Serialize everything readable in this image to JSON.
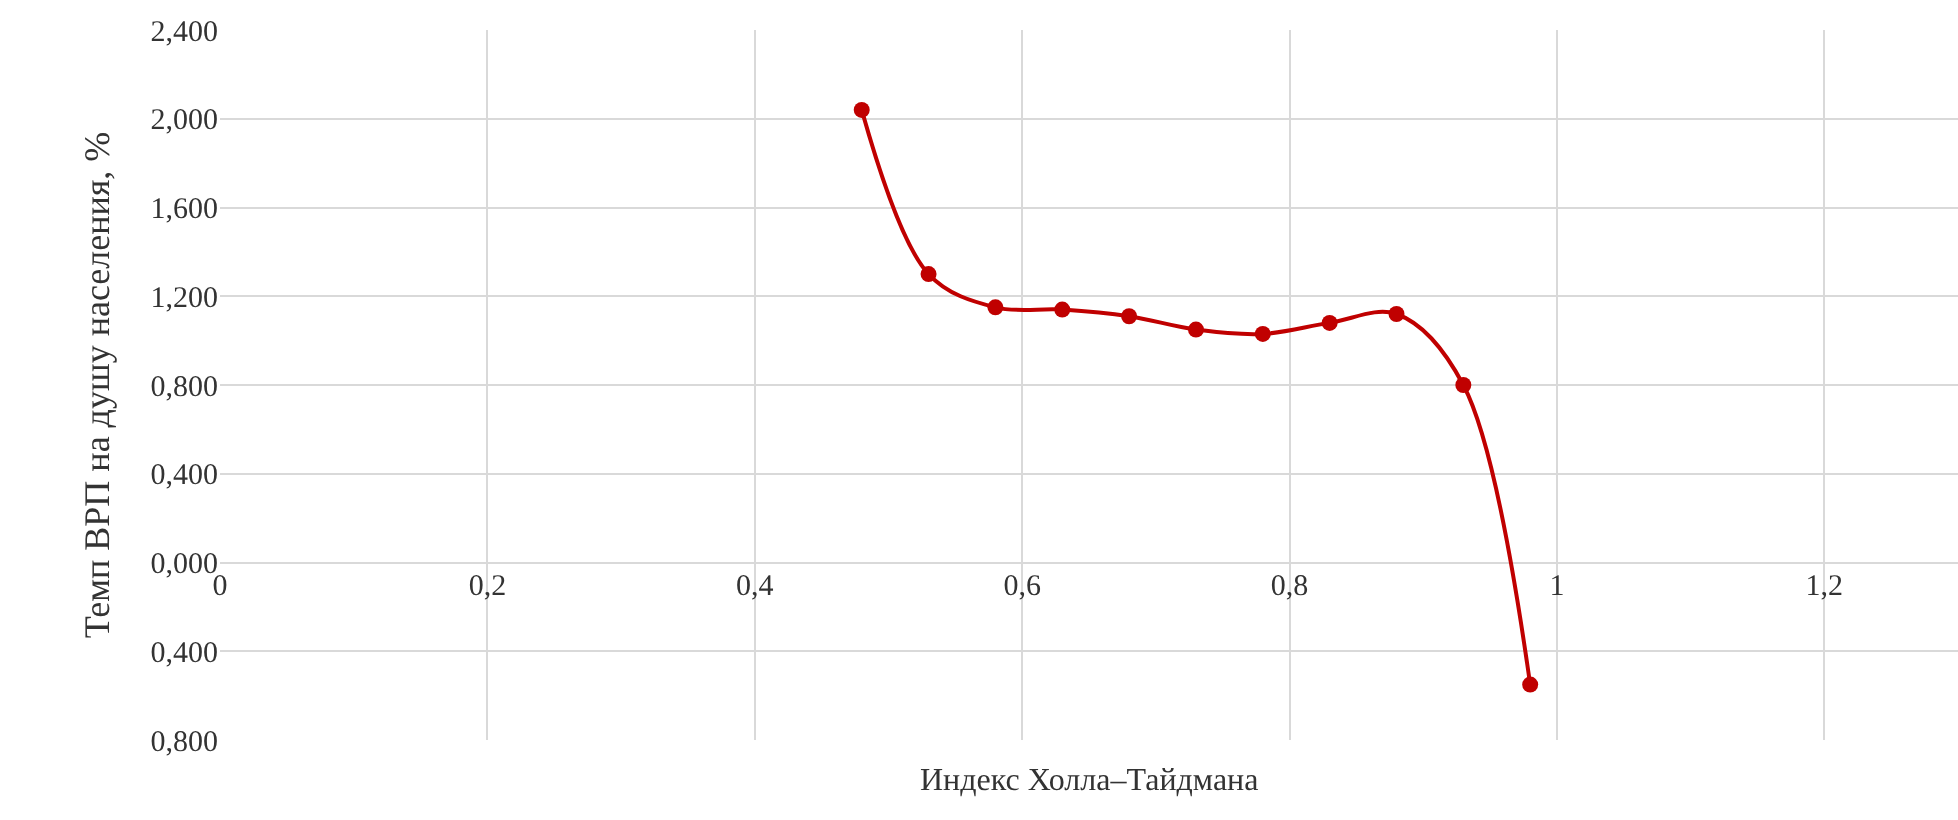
{
  "chart_data": {
    "type": "line",
    "xlabel": "Индекс Холла–Тайдмана",
    "ylabel": "Темп ВРП на душу населения, %",
    "x": [
      0.48,
      0.53,
      0.58,
      0.63,
      0.68,
      0.73,
      0.78,
      0.83,
      0.88,
      0.93,
      0.98
    ],
    "series": [
      {
        "color": "#c00000",
        "values": [
          2.04,
          1.3,
          1.15,
          1.14,
          1.11,
          1.05,
          1.03,
          1.08,
          1.12,
          0.8,
          -0.55
        ]
      }
    ],
    "xlim": [
      0,
      1.3
    ],
    "xticks": [
      0,
      {
        "value": 0.2,
        "label": "0,2"
      },
      {
        "value": 0.4,
        "label": "0,4"
      },
      {
        "value": 0.6,
        "label": "0,6"
      },
      {
        "value": 0.8,
        "label": "0,8"
      },
      1,
      {
        "value": 1.2,
        "label": "1,2"
      }
    ],
    "ylim": [
      -0.8,
      2.4
    ],
    "yticks": [
      {
        "value": -0.8,
        "label": "0,800"
      },
      {
        "value": -0.4,
        "label": "0,400"
      },
      {
        "value": 0,
        "label": "0,000"
      },
      {
        "value": 0.4,
        "label": "0,400"
      },
      {
        "value": 0.8,
        "label": "0,800"
      },
      {
        "value": 1.2,
        "label": "1,200"
      },
      {
        "value": 1.6,
        "label": "1,600"
      },
      {
        "value": 2.0,
        "label": "2,000"
      },
      {
        "value": 2.4,
        "label": "2,400"
      }
    ],
    "grid": true,
    "marker": "circle",
    "line_style": "solid"
  }
}
